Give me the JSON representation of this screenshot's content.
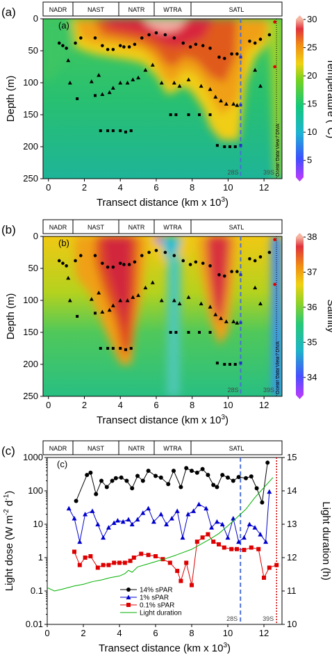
{
  "chart_data": [
    {
      "type": "heatmap",
      "panel": "(a)",
      "inner_label": "(a)",
      "provinces": [
        "NADR",
        "NAST",
        "NATR",
        "WTRA",
        "SATL"
      ],
      "xlabel": "Transect distance (km x 10",
      "xlabel_sup": "3",
      "xlabel_end": ")",
      "ylabel": "Depth (m)",
      "xlim": [
        -0.3,
        13.0
      ],
      "ylim": [
        250,
        0
      ],
      "x_ticks": [
        0,
        2,
        4,
        6,
        8,
        10,
        12
      ],
      "y_ticks": [
        0,
        50,
        100,
        150,
        200,
        250
      ],
      "colorbar_label": "Temperature (°C)",
      "colorbar_ticks": [
        5,
        10,
        15,
        20,
        25,
        30
      ],
      "colorbar_range": [
        2,
        30
      ],
      "station_labels": [
        "28S",
        "39S"
      ],
      "station_x": [
        10.7,
        12.5
      ],
      "watermark": "Ocean Data View / DIVA",
      "layer_14pct": [
        [
          0.6,
          38
        ],
        [
          0.8,
          42
        ],
        [
          1.0,
          46
        ],
        [
          1.5,
          38
        ],
        [
          1.8,
          30
        ],
        [
          2.6,
          30
        ],
        [
          3.0,
          42
        ],
        [
          3.3,
          48
        ],
        [
          3.6,
          48
        ],
        [
          4.0,
          42
        ],
        [
          4.2,
          44
        ],
        [
          4.5,
          44
        ],
        [
          4.8,
          40
        ],
        [
          5.2,
          30
        ],
        [
          5.6,
          25
        ],
        [
          6.0,
          22
        ],
        [
          6.5,
          25
        ],
        [
          7.0,
          30
        ],
        [
          7.5,
          38
        ],
        [
          7.9,
          44
        ],
        [
          8.2,
          40
        ],
        [
          8.6,
          42
        ],
        [
          9.0,
          46
        ],
        [
          9.5,
          60
        ],
        [
          9.8,
          62
        ],
        [
          10.2,
          55
        ],
        [
          10.5,
          55
        ],
        [
          11.2,
          35
        ],
        [
          11.5,
          38
        ],
        [
          11.8,
          32
        ],
        [
          12.3,
          25
        ]
      ],
      "layer_1pct": [
        [
          1.1,
          65
        ],
        [
          1.2,
          100
        ],
        [
          2.4,
          98
        ],
        [
          2.8,
          88
        ],
        [
          3.0,
          118
        ],
        [
          3.4,
          115
        ],
        [
          3.6,
          108
        ],
        [
          4.0,
          100
        ],
        [
          4.4,
          100
        ],
        [
          4.7,
          95
        ],
        [
          5.0,
          92
        ],
        [
          5.4,
          80
        ],
        [
          5.8,
          72
        ],
        [
          6.3,
          100
        ],
        [
          7.0,
          100
        ],
        [
          7.3,
          105
        ],
        [
          7.8,
          95
        ],
        [
          8.5,
          105
        ],
        [
          9.0,
          110
        ],
        [
          9.3,
          122
        ],
        [
          9.6,
          128
        ],
        [
          9.9,
          133
        ],
        [
          10.3,
          133
        ],
        [
          10.5,
          135
        ],
        [
          11.5,
          80
        ],
        [
          11.8,
          105
        ]
      ],
      "layer_01pct": [
        [
          1.6,
          125
        ],
        [
          2.6,
          120
        ],
        [
          2.9,
          175
        ],
        [
          3.3,
          175
        ],
        [
          3.6,
          175
        ],
        [
          4.0,
          175
        ],
        [
          4.3,
          177
        ],
        [
          4.6,
          175
        ],
        [
          6.8,
          150
        ],
        [
          7.1,
          150
        ],
        [
          7.8,
          150
        ],
        [
          8.4,
          150
        ],
        [
          9.0,
          150
        ],
        [
          9.4,
          198
        ],
        [
          9.8,
          200
        ],
        [
          10.1,
          200
        ],
        [
          10.4,
          200
        ],
        [
          10.7,
          198
        ]
      ],
      "dashed_markers": [
        [
          10.7,
          60
        ],
        [
          10.7,
          135
        ],
        [
          10.7,
          198
        ]
      ],
      "red_markers": [
        [
          12.6,
          5
        ],
        [
          12.6,
          75
        ]
      ]
    },
    {
      "type": "heatmap",
      "panel": "(b)",
      "inner_label": "(b)",
      "provinces": [
        "NADR",
        "NAST",
        "NATR",
        "WTRA",
        "SATL"
      ],
      "xlabel": "Transect distance (km x 10",
      "xlabel_sup": "3",
      "xlabel_end": ")",
      "ylabel": "Depth (m)",
      "xlim": [
        -0.3,
        13.0
      ],
      "ylim": [
        250,
        0
      ],
      "x_ticks": [
        0,
        2,
        4,
        6,
        8,
        10,
        12
      ],
      "y_ticks": [
        0,
        50,
        100,
        150,
        200,
        250
      ],
      "colorbar_label": "Salinity",
      "colorbar_ticks": [
        34,
        35,
        36,
        37,
        38
      ],
      "colorbar_range": [
        33.5,
        38
      ],
      "station_labels": [
        "28S",
        "39S"
      ],
      "station_x": [
        10.7,
        12.5
      ],
      "watermark": "Ocean Data View / DIVA"
    },
    {
      "type": "line",
      "panel": "(c)",
      "inner_label": "(c)",
      "provinces": [
        "NADR",
        "NAST",
        "NATR",
        "WTRA",
        "SATL"
      ],
      "xlabel": "Transect distance (km x 10",
      "xlabel_sup": "3",
      "xlabel_end": ")",
      "ylabel": "Light dose (W m",
      "ylabel_sup1": "-2",
      "ylabel_mid": " d",
      "ylabel_sup2": "-1",
      "ylabel_end": ")",
      "y2label": "Light duration (h)",
      "xlim": [
        0,
        13
      ],
      "ylim": [
        0.01,
        1000
      ],
      "yscale": "log",
      "y2lim": [
        10,
        15
      ],
      "x_ticks": [
        0,
        2,
        4,
        6,
        8,
        10,
        12
      ],
      "y_ticks": [
        0.01,
        0.1,
        1,
        10,
        100,
        1000
      ],
      "y_tick_labels": [
        "0.01",
        "0.1",
        "1",
        "10",
        "100",
        "1000"
      ],
      "y2_ticks": [
        10,
        11,
        12,
        13,
        14,
        15
      ],
      "station_labels": [
        "28S",
        "39S"
      ],
      "station_x": [
        10.7,
        12.7
      ],
      "legend_position": "bottom-left",
      "series": [
        {
          "name": "14% sPAR",
          "color": "#000000",
          "marker": "circle",
          "x": [
            1.6,
            2.2,
            2.4,
            2.7,
            3.0,
            3.3,
            3.6,
            3.8,
            4.1,
            4.4,
            4.7,
            5.0,
            5.3,
            5.6,
            6.0,
            6.3,
            6.7,
            7.0,
            7.4,
            7.7,
            8.0,
            8.3,
            8.6,
            8.9,
            9.2,
            9.4,
            9.7,
            10.0,
            10.3,
            10.6,
            11.0,
            11.3,
            11.6,
            11.9,
            12.2
          ],
          "y": [
            50,
            300,
            350,
            80,
            200,
            130,
            200,
            240,
            250,
            200,
            120,
            280,
            200,
            400,
            280,
            250,
            160,
            400,
            130,
            480,
            400,
            350,
            450,
            300,
            150,
            130,
            300,
            250,
            200,
            260,
            240,
            270,
            120,
            45,
            700
          ]
        },
        {
          "name": "1% sPAR",
          "color": "#0000cc",
          "marker": "triangle",
          "x": [
            1.2,
            1.5,
            1.8,
            2.1,
            2.5,
            2.8,
            3.1,
            3.4,
            3.7,
            3.9,
            4.2,
            4.5,
            4.7,
            5.0,
            5.3,
            5.6,
            5.9,
            6.3,
            6.6,
            6.9,
            7.2,
            7.5,
            7.8,
            8.1,
            8.4,
            8.8,
            9.1,
            9.4,
            9.7,
            10.0,
            10.3,
            10.6,
            10.9,
            11.2,
            11.5,
            11.8,
            12.1,
            12.3
          ],
          "y": [
            30,
            15,
            3,
            20,
            25,
            10,
            4,
            8,
            11,
            13,
            12,
            14,
            10,
            14,
            22,
            30,
            12,
            20,
            10,
            15,
            25,
            4,
            20,
            25,
            40,
            30,
            8,
            12,
            10,
            4,
            15,
            3,
            4,
            10,
            8,
            5,
            3,
            95
          ]
        },
        {
          "name": "0.1% sPAR",
          "color": "#dd0000",
          "marker": "square",
          "x": [
            1.5,
            1.8,
            2.1,
            2.4,
            2.8,
            3.1,
            3.4,
            3.7,
            4.0,
            4.3,
            4.6,
            4.8,
            5.2,
            5.6,
            6.0,
            6.4,
            6.8,
            7.2,
            7.4,
            7.7,
            8.0,
            8.3,
            8.6,
            8.9,
            9.2,
            9.5,
            9.8,
            10.2,
            10.5,
            10.9,
            11.3,
            11.7,
            12.0,
            12.3,
            12.7
          ],
          "y": [
            1.5,
            0.6,
            1.0,
            1.1,
            0.5,
            0.6,
            0.6,
            0.7,
            0.7,
            0.7,
            0.8,
            1.0,
            1.3,
            1.2,
            1.1,
            0.9,
            0.7,
            0.4,
            0.2,
            0.7,
            0.15,
            3,
            4,
            5,
            3,
            2.5,
            2,
            1.8,
            1.8,
            1.7,
            2,
            1.8,
            0.25,
            0.5,
            0.6
          ]
        },
        {
          "name": "Light duration",
          "color": "#00b000",
          "axis": "y2",
          "x": [
            0.0,
            0.4,
            0.8,
            1.5,
            2.0,
            2.5,
            3.0,
            3.5,
            4.0,
            4.3,
            4.5,
            4.7,
            5.0,
            5.5,
            6.0,
            6.5,
            7.0,
            7.5,
            8.0,
            8.5,
            9.0,
            9.5,
            10.0,
            10.5,
            11.0,
            11.5,
            12.0,
            12.5
          ],
          "y": [
            11.1,
            11.0,
            11.05,
            11.15,
            11.2,
            11.28,
            11.33,
            11.4,
            11.45,
            11.52,
            11.62,
            11.56,
            11.72,
            11.8,
            11.88,
            11.96,
            12.05,
            12.15,
            12.25,
            12.4,
            12.55,
            12.72,
            12.95,
            13.2,
            13.45,
            13.8,
            14.1,
            14.4
          ]
        }
      ]
    }
  ]
}
